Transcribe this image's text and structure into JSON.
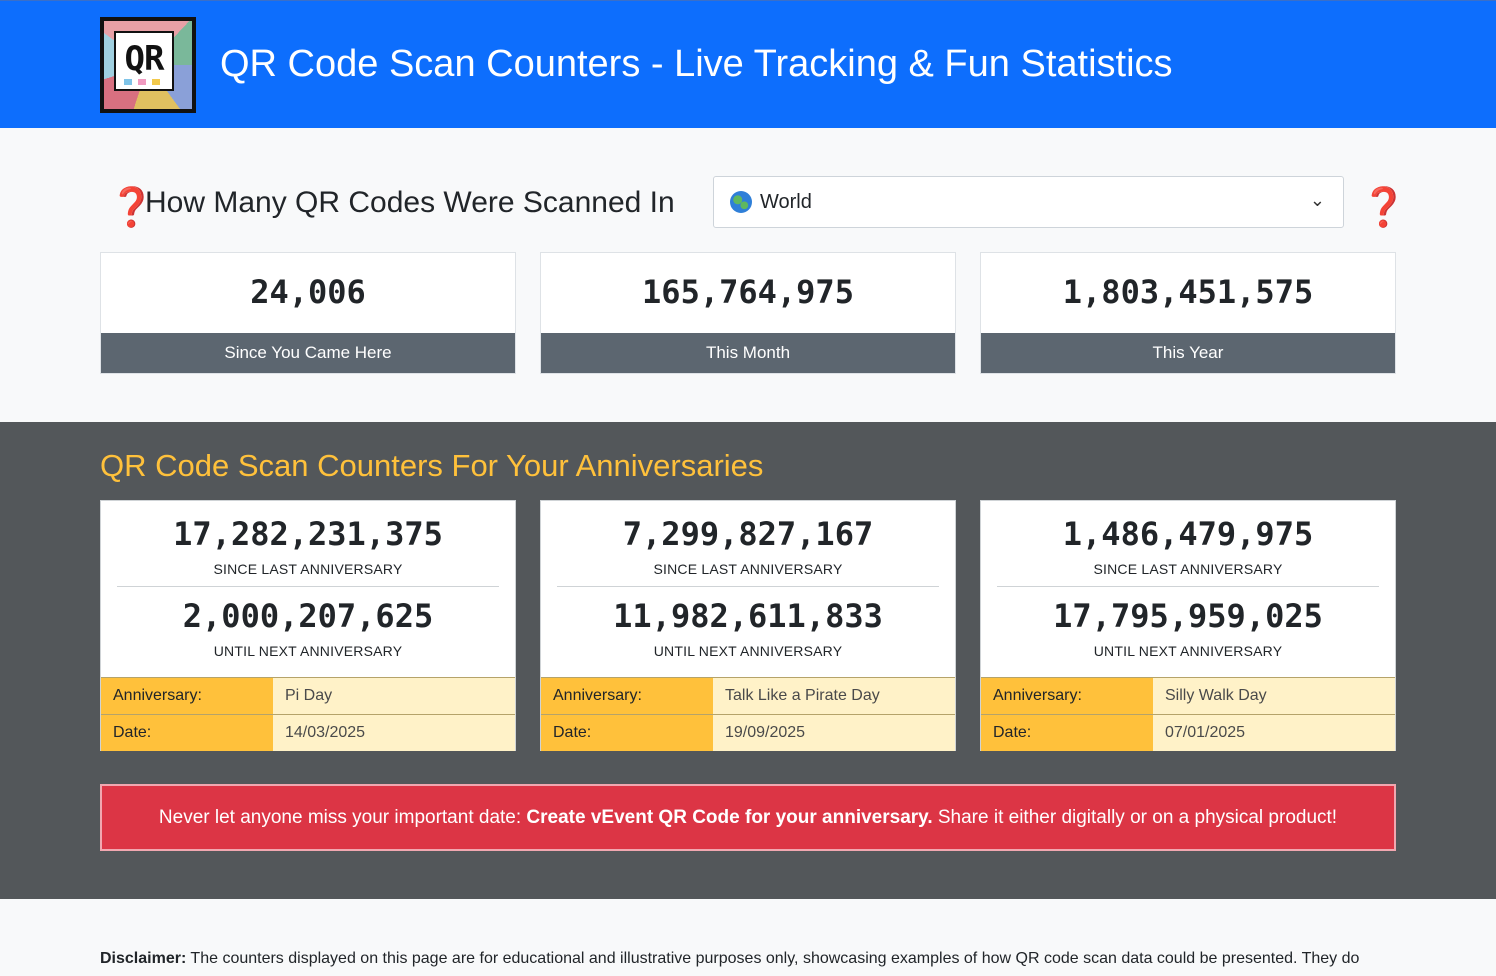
{
  "header": {
    "title": "QR Code Scan Counters - Live Tracking & Fun Statistics",
    "logo_text": "QR"
  },
  "question": {
    "text": "How Many QR Codes Were Scanned In",
    "icon": "red-question-mark-icon",
    "icon_glyph": "❓",
    "region_select": {
      "selected": "World",
      "icon": "globe-icon"
    }
  },
  "stats": [
    {
      "value": "24,006",
      "label": "Since You Came Here"
    },
    {
      "value": "165,764,975",
      "label": "This Month"
    },
    {
      "value": "1,803,451,575",
      "label": "This Year"
    }
  ],
  "anniversaries": {
    "title": "QR Code Scan Counters For Your Anniversaries",
    "since_label": "SINCE LAST ANNIVERSARY",
    "until_label": "UNTIL NEXT ANNIVERSARY",
    "anniversary_key": "Anniversary:",
    "date_key": "Date:",
    "items": [
      {
        "since": "17,282,231,375",
        "until": "2,000,207,625",
        "name": "Pi Day",
        "date": "14/03/2025"
      },
      {
        "since": "7,299,827,167",
        "until": "11,982,611,833",
        "name": "Talk Like a Pirate Day",
        "date": "19/09/2025"
      },
      {
        "since": "1,486,479,975",
        "until": "17,795,959,025",
        "name": "Silly Walk Day",
        "date": "07/01/2025"
      }
    ]
  },
  "cta": {
    "prefix": "Never let anyone miss your important date: ",
    "link": "Create vEvent QR Code for your anniversary.",
    "suffix": " Share it either digitally or on a physical product!"
  },
  "disclaimer": {
    "label": "Disclaimer:",
    "text": " The counters displayed on this page are for educational and illustrative purposes only, showcasing examples of how QR code scan data could be presented. They do"
  },
  "colors": {
    "header_bg": "#0d6efd",
    "dark_section_bg": "#53575a",
    "accent_yellow": "#ffc13b",
    "cta_red": "#dc3545",
    "stat_label_bg": "#5c6670"
  }
}
